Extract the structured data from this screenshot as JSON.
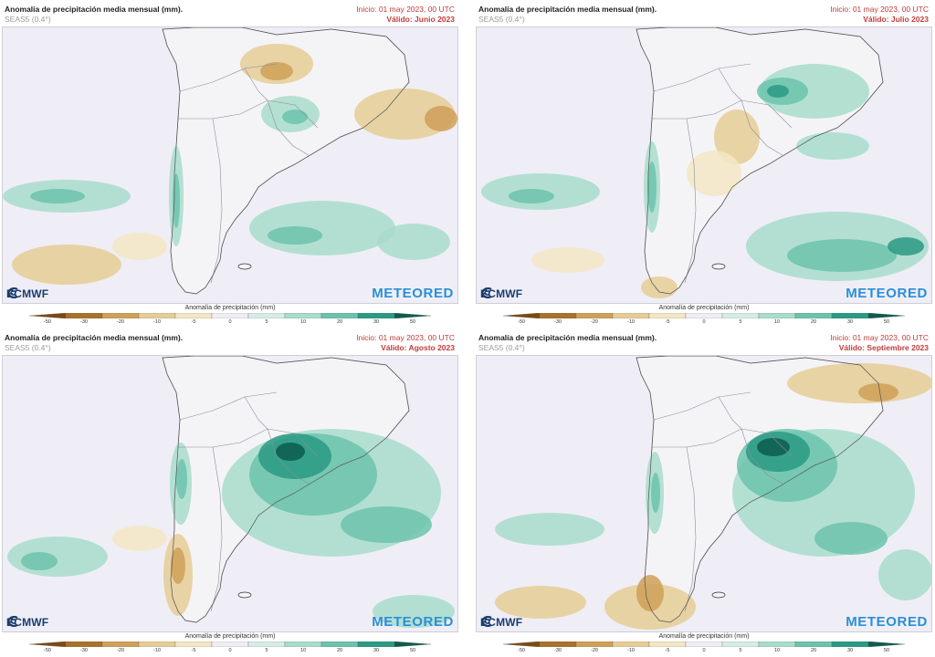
{
  "common": {
    "title": "Anomalía de precipitación media mensual (mm).",
    "model": "SEAS5 (0.4°)",
    "init": "Inicio: 01 may 2023, 00 UTC",
    "legend_title": "Anomalía de precipitación (mm)",
    "logo_left": "ECMWF",
    "logo_right": "METEORED"
  },
  "legend": {
    "ticks": [
      "-50",
      "-30",
      "-20",
      "-10",
      "-5",
      "0",
      "5",
      "10",
      "20",
      "30",
      "50"
    ],
    "colors": [
      "#7a4a12",
      "#a9712a",
      "#cfa058",
      "#e5cd95",
      "#f3e6c4",
      "#efeef6",
      "#d6ede6",
      "#a8dccb",
      "#6cc3ad",
      "#2a9a84",
      "#0c5c4e"
    ]
  },
  "panels": [
    {
      "valid": "Válido: Junio 2023"
    },
    {
      "valid": "Válido: Julio 2023"
    },
    {
      "valid": "Válido: Agosto 2023"
    },
    {
      "valid": "Válido: Septiembre 2023"
    }
  ],
  "map_colors": {
    "background": "#efeef6",
    "land": "#f4f4f7",
    "border": "#8c8c96"
  }
}
